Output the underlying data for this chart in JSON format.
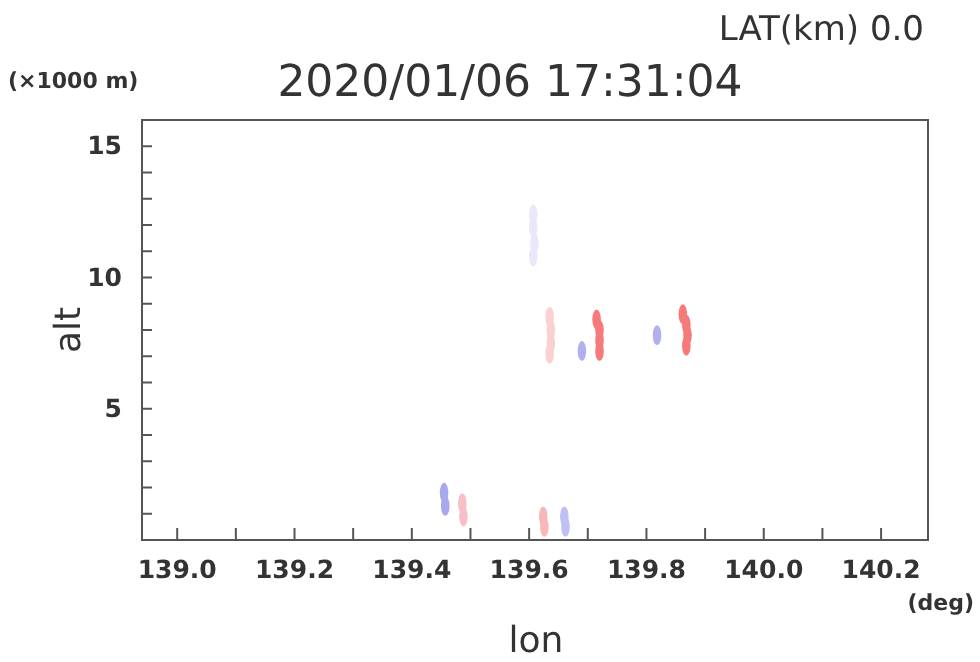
{
  "chart_data": {
    "type": "scatter",
    "title": "2020/01/06 17:31:04",
    "subtitle": "LAT(km) 0.0",
    "xlabel": "lon",
    "ylabel": "alt",
    "annotations": [
      "(×1000 m)",
      "(deg)"
    ],
    "marker": "circle",
    "grid": false,
    "xlim": [
      138.94,
      140.28
    ],
    "xticks": [
      {
        "value": 139.0,
        "label": "139.0"
      },
      {
        "value": 139.1,
        "label": null
      },
      {
        "value": 139.2,
        "label": "139.2"
      },
      {
        "value": 139.3,
        "label": null
      },
      {
        "value": 139.4,
        "label": "139.4"
      },
      {
        "value": 139.5,
        "label": null
      },
      {
        "value": 139.6,
        "label": "139.6"
      },
      {
        "value": 139.7,
        "label": null
      },
      {
        "value": 139.8,
        "label": "139.8"
      },
      {
        "value": 139.9,
        "label": null
      },
      {
        "value": 140.0,
        "label": "140.0"
      },
      {
        "value": 140.1,
        "label": null
      },
      {
        "value": 140.2,
        "label": "140.2"
      }
    ],
    "ylim": [
      0,
      16
    ],
    "yticks": [
      {
        "value": 1,
        "label": null
      },
      {
        "value": 2,
        "label": null
      },
      {
        "value": 3,
        "label": null
      },
      {
        "value": 4,
        "label": null
      },
      5,
      {
        "value": 6,
        "label": null
      },
      {
        "value": 7,
        "label": null
      },
      {
        "value": 8,
        "label": null
      },
      {
        "value": 9,
        "label": null
      },
      10,
      {
        "value": 11,
        "label": null
      },
      {
        "value": 12,
        "label": null
      },
      {
        "value": 13,
        "label": null
      },
      {
        "value": 14,
        "label": null
      },
      15
    ],
    "series": [
      {
        "x": [
          139.607,
          139.607,
          139.609,
          139.607,
          139.635,
          139.637,
          139.637,
          139.635,
          139.715,
          139.72,
          139.72,
          139.72,
          139.69,
          139.818,
          139.862,
          139.868,
          139.87,
          139.868,
          139.455,
          139.457,
          139.486,
          139.488,
          139.624,
          139.626,
          139.66,
          139.662
        ],
        "values": [
          12.4,
          11.9,
          11.3,
          10.8,
          8.5,
          8.0,
          7.5,
          7.1,
          8.4,
          8.0,
          7.6,
          7.2,
          7.2,
          7.8,
          8.6,
          8.2,
          7.8,
          7.4,
          1.8,
          1.3,
          1.4,
          0.9,
          0.9,
          0.5,
          0.9,
          0.5
        ],
        "colors": [
          "#e8e8fa",
          "#e8e8fa",
          "#e8e8fa",
          "#e8e8fa",
          "#fbd0d0",
          "#fbd0d0",
          "#fbd0d0",
          "#fbd0d0",
          "#f77a7a",
          "#f77a7a",
          "#f77a7a",
          "#f77a7a",
          "#b0b0f0",
          "#b0b0f0",
          "#f77a7a",
          "#f77a7a",
          "#f77a7a",
          "#f77a7a",
          "#a8a8f0",
          "#a8a8f0",
          "#f7c0c8",
          "#f7c0c8",
          "#f7b8b8",
          "#f7b8b8",
          "#c0c0f4",
          "#c0c0f4"
        ]
      }
    ]
  }
}
